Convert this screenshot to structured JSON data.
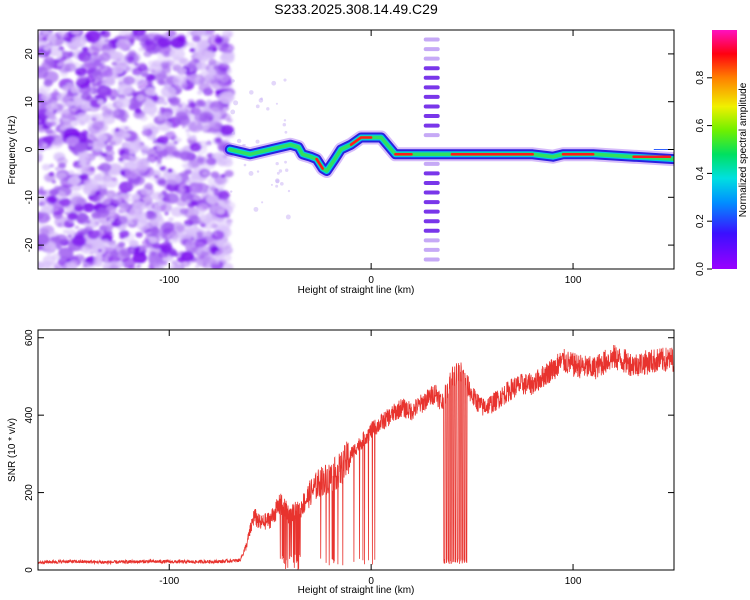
{
  "figure": {
    "title": "S233.2025.308.14.49.C29"
  },
  "chart_data": [
    {
      "type": "heatmap",
      "title": "S233.2025.308.14.49.C29",
      "xlabel": "Height of straight line (km)",
      "ylabel": "Frequency (Hz)",
      "xlim": [
        -165,
        150
      ],
      "ylim": [
        -25,
        25
      ],
      "xticks": [
        "-100",
        "0",
        "100"
      ],
      "xtick_values": [
        -100,
        0,
        100
      ],
      "yticks": [
        "-20",
        "-10",
        "0",
        "10",
        "20"
      ],
      "ytick_values": [
        -20,
        -10,
        0,
        10,
        20
      ],
      "colorbar": {
        "label": "Normalized spectral amplitude",
        "range": [
          0,
          1
        ],
        "ticks": [
          "0.0",
          "0.2",
          "0.4",
          "0.6",
          "0.8"
        ],
        "tick_values": [
          0.0,
          0.2,
          0.4,
          0.6,
          0.8
        ],
        "colormap": "rainbow (violet-blue-cyan-green-yellow-red-magenta)"
      },
      "noise_region_x": [
        -165,
        -70
      ],
      "comb_artifact_x": 30,
      "ridge": {
        "x": [
          -70,
          -60,
          -50,
          -45,
          -40,
          -36,
          -34,
          -30,
          -27,
          -24,
          -22,
          -18,
          -15,
          -10,
          -5,
          0,
          5,
          8,
          12,
          20,
          27,
          35,
          40,
          50,
          60,
          80,
          90,
          95,
          110,
          130,
          150
        ],
        "freq": [
          0,
          -1,
          0,
          0.5,
          1,
          0.5,
          -1,
          -1.5,
          -2,
          -4,
          -4.5,
          -2,
          0,
          1,
          2.5,
          2.5,
          2.5,
          1,
          -1,
          -1,
          -1,
          -1,
          -1,
          -1,
          -1,
          -1,
          -1.5,
          -1,
          -1,
          -1.5,
          -2
        ]
      }
    },
    {
      "type": "line",
      "title": "",
      "xlabel": "Height of straight line (km)",
      "ylabel": "SNR (10 * v/v)",
      "xlim": [
        -165,
        150
      ],
      "ylim": [
        0,
        620
      ],
      "xticks": [
        "-100",
        "0",
        "100"
      ],
      "xtick_values": [
        -100,
        0,
        100
      ],
      "yticks": [
        "0",
        "200",
        "400",
        "600"
      ],
      "ytick_values": [
        0,
        200,
        400,
        600
      ],
      "series": [
        {
          "name": "SNR",
          "color": "#e8332e",
          "x": [
            -165,
            -150,
            -130,
            -110,
            -90,
            -75,
            -65,
            -62,
            -58,
            -55,
            -50,
            -45,
            -40,
            -35,
            -30,
            -25,
            -20,
            -15,
            -10,
            -5,
            0,
            5,
            10,
            15,
            20,
            25,
            30,
            32,
            35,
            40,
            45,
            50,
            55,
            60,
            65,
            70,
            75,
            80,
            85,
            90,
            95,
            100,
            110,
            120,
            130,
            140,
            150
          ],
          "values": [
            20,
            22,
            20,
            22,
            21,
            22,
            25,
            60,
            140,
            120,
            130,
            170,
            140,
            160,
            200,
            230,
            240,
            260,
            300,
            330,
            360,
            380,
            400,
            420,
            410,
            430,
            450,
            460,
            430,
            500,
            510,
            450,
            420,
            430,
            450,
            470,
            480,
            480,
            500,
            520,
            540,
            530,
            520,
            550,
            530,
            540,
            545
          ]
        }
      ],
      "dropouts": [
        {
          "x_range": [
            -45,
            -35
          ],
          "note": "deep drops to near 0"
        },
        {
          "x_range": [
            -25,
            2
          ],
          "note": "spikes down to ~10"
        },
        {
          "x_range": [
            36,
            48
          ],
          "note": "dense vertical bars down to ~20"
        }
      ]
    }
  ]
}
